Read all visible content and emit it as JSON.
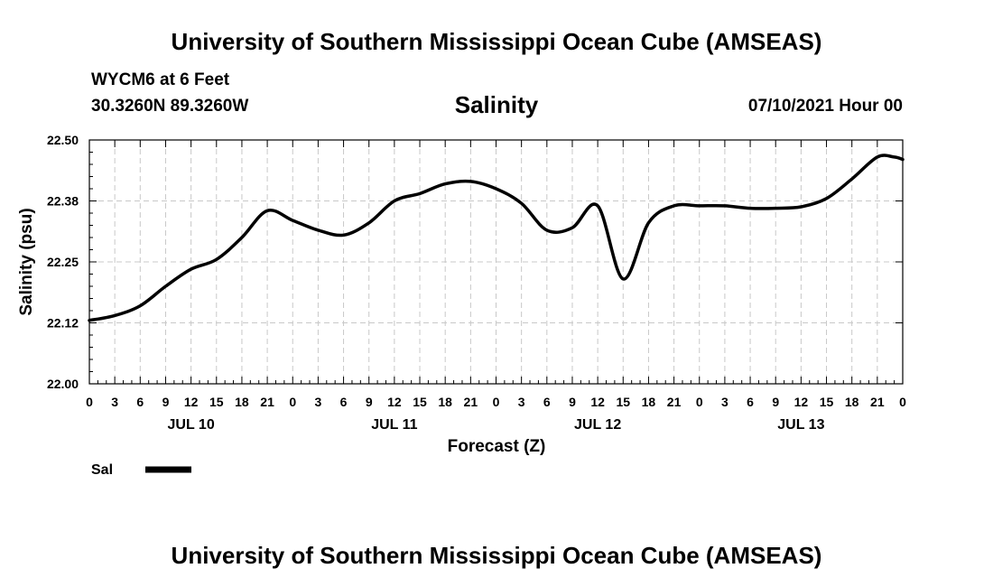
{
  "header": {
    "title_top": "University of Southern Mississippi Ocean Cube (AMSEAS)",
    "station": "WYCM6 at 6 Feet",
    "coords": "30.3260N  89.3260W",
    "variable": "Salinity",
    "datetime": "07/10/2021 Hour 00",
    "title_bottom": "University of Southern Mississippi Ocean Cube (AMSEAS)"
  },
  "chart_data": {
    "type": "line",
    "title": "Salinity",
    "xlabel": "Forecast (Z)",
    "ylabel": "Salinity (psu)",
    "xlim": [
      0,
      96
    ],
    "ylim": [
      22.0,
      22.5
    ],
    "grid": true,
    "y_ticks": [
      22.0,
      22.125,
      22.25,
      22.375,
      22.5
    ],
    "y_tick_labels": [
      "22.00",
      "22.12",
      "22.25",
      "22.38",
      "22.50"
    ],
    "x_tick_hours": [
      0,
      3,
      6,
      9,
      12,
      15,
      18,
      21,
      24,
      27,
      30,
      33,
      36,
      39,
      42,
      45,
      48,
      51,
      54,
      57,
      60,
      63,
      66,
      69,
      72,
      75,
      78,
      81,
      84,
      87,
      90,
      93,
      96
    ],
    "x_tick_labels": [
      "0",
      "3",
      "6",
      "9",
      "12",
      "15",
      "18",
      "21",
      "0",
      "3",
      "6",
      "9",
      "12",
      "15",
      "18",
      "21",
      "0",
      "3",
      "6",
      "9",
      "12",
      "15",
      "18",
      "21",
      "0",
      "3",
      "6",
      "9",
      "12",
      "15",
      "18",
      "21",
      "0"
    ],
    "day_labels": [
      {
        "hour": 12,
        "label": "JUL 10"
      },
      {
        "hour": 36,
        "label": "JUL 11"
      },
      {
        "hour": 60,
        "label": "JUL 12"
      },
      {
        "hour": 84,
        "label": "JUL 13"
      }
    ],
    "legend": {
      "label": "Sal",
      "placement": "bottom-left"
    },
    "series": [
      {
        "name": "Sal",
        "color": "#000000",
        "x": [
          0,
          3,
          6,
          9,
          12,
          15,
          18,
          21,
          24,
          27,
          30,
          33,
          36,
          39,
          42,
          45,
          48,
          51,
          54,
          57,
          60,
          63,
          66,
          69,
          72,
          75,
          78,
          81,
          84,
          87,
          90,
          93,
          95,
          96
        ],
        "y": [
          22.13,
          22.14,
          22.16,
          22.2,
          22.235,
          22.255,
          22.3,
          22.355,
          22.335,
          22.315,
          22.305,
          22.33,
          22.375,
          22.39,
          22.41,
          22.415,
          22.4,
          22.37,
          22.315,
          22.32,
          22.365,
          22.215,
          22.33,
          22.365,
          22.365,
          22.365,
          22.36,
          22.36,
          22.363,
          22.38,
          22.42,
          22.465,
          22.465,
          22.46
        ]
      }
    ]
  }
}
